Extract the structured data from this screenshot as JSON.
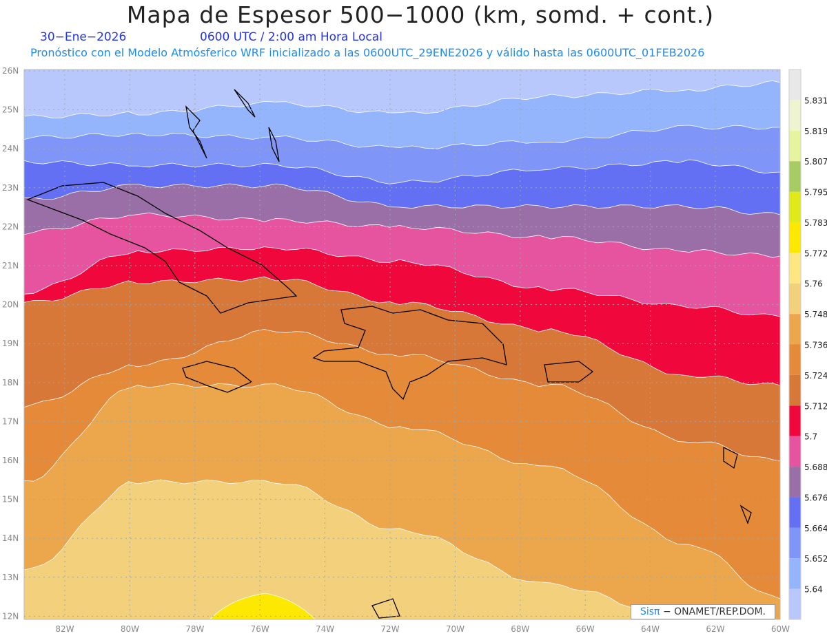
{
  "header": {
    "title": "Mapa de Espesor 500−1000 (km, somd. + cont.)",
    "date": "30−Ene−2026",
    "time": "0600 UTC / 2:00 am Hora Local",
    "subtitle": "Pronóstico con el Modelo Atmósferico WRF inicializado a las 0600UTC_29ENE2026 y válido hasta las  0600UTC_01FEB2026"
  },
  "axes": {
    "lat_labels": [
      "26N",
      "25N",
      "24N",
      "23N",
      "22N",
      "21N",
      "20N",
      "19N",
      "18N",
      "17N",
      "16N",
      "15N",
      "14N",
      "13N",
      "12N"
    ],
    "lon_labels": [
      "82W",
      "80W",
      "78W",
      "76W",
      "74W",
      "72W",
      "70W",
      "68W",
      "66W",
      "64W",
      "62W",
      "60W"
    ]
  },
  "colorbar": {
    "levels": [
      "5.64",
      "5.652",
      "5.664",
      "5.676",
      "5.688",
      "5.7",
      "5.712",
      "5.724",
      "5.736",
      "5.748",
      "5.76",
      "5.772",
      "5.783",
      "5.795",
      "5.807",
      "5.819",
      "5.831"
    ],
    "colors": [
      "#b8c8fc",
      "#94b4fc",
      "#7f95f8",
      "#6470f4",
      "#9a6ea6",
      "#e654a0",
      "#f0083c",
      "#d87838",
      "#e48a38",
      "#eca64c",
      "#f2d07c",
      "#fee682",
      "#fce800",
      "#e0ea1a",
      "#a8cc64",
      "#e6f4a0",
      "#eef4d0",
      "#e8e8e8"
    ]
  },
  "logo": {
    "brand": "Sisπ",
    "text": "− ONAMET/REP.DOM."
  }
}
